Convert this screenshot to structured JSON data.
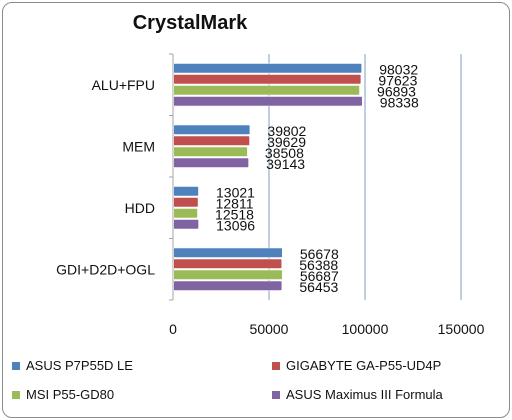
{
  "chart_data": {
    "type": "bar",
    "orientation": "horizontal",
    "title": "CrystalMark",
    "xlabel": "",
    "ylabel": "",
    "xlim": [
      0,
      150000
    ],
    "x_ticks": [
      0,
      50000,
      100000,
      150000
    ],
    "x_tick_labels": [
      "0",
      "50000",
      "100000",
      "150000"
    ],
    "grid": true,
    "legend_position": "bottom",
    "categories": [
      "ALU+FPU",
      "MEM",
      "HDD",
      "GDI+D2D+OGL"
    ],
    "series": [
      {
        "name": "ASUS P7P55D LE",
        "color": "#4f81bd",
        "values": [
          98032,
          39802,
          13021,
          56678
        ]
      },
      {
        "name": "GIGABYTE GA-P55-UD4P",
        "color": "#c0504d",
        "values": [
          97623,
          39629,
          12811,
          56388
        ]
      },
      {
        "name": "MSI P55-GD80",
        "color": "#9bbb59",
        "values": [
          96893,
          38508,
          12518,
          56687
        ]
      },
      {
        "name": "ASUS Maximus III Formula",
        "color": "#8064a2",
        "values": [
          98338,
          39143,
          13096,
          56453
        ]
      }
    ]
  }
}
